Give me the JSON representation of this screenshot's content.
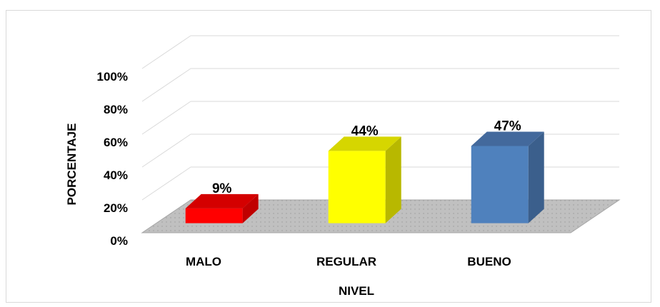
{
  "chart_data": {
    "type": "bar",
    "categories": [
      "MALO",
      "REGULAR",
      "BUENO"
    ],
    "values": [
      9,
      44,
      47
    ],
    "data_labels": [
      "9%",
      "44%",
      "47%"
    ],
    "colors": [
      "#ff0000",
      "#ffff00",
      "#4f81bd"
    ],
    "side_colors": [
      "#c00000",
      "#b8b800",
      "#3b5f8c"
    ],
    "top_colors": [
      "#d40000",
      "#d6d600",
      "#43699c"
    ],
    "floor_color": "#c0c0c0",
    "xlabel": "NIVEL",
    "ylabel": "PORCENTAJE",
    "yticks": [
      "0%",
      "20%",
      "40%",
      "60%",
      "80%",
      "100%"
    ],
    "ylim": [
      0,
      100
    ],
    "grid": true,
    "style": "3d-column"
  }
}
